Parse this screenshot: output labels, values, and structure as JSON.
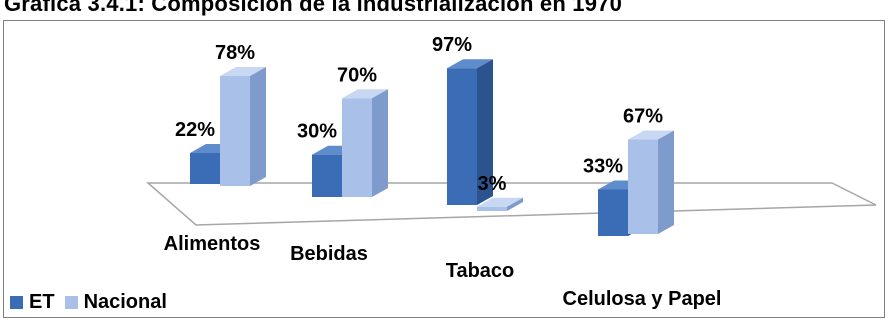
{
  "title": "Gráfica 3.4.1: Composición de la industrialización en 1970",
  "colors": {
    "et_front": "#3a6db5",
    "et_side": "#2b548f",
    "et_top": "#5f8ccb",
    "nacional_front": "#a9c0e8",
    "nacional_side": "#7f9bcc",
    "nacional_top": "#c8d8f3"
  },
  "chart_data": {
    "type": "bar",
    "title": "Gráfica 3.4.1: Composición de la industrialización en 1970",
    "categories": [
      "Alimentos",
      "Bebidas",
      "Tabaco",
      "Celulosa y Papel"
    ],
    "series": [
      {
        "name": "ET",
        "values": [
          22,
          30,
          97,
          33
        ],
        "labels": [
          "22%",
          "30%",
          "97%",
          "33%"
        ]
      },
      {
        "name": "Nacional",
        "values": [
          78,
          70,
          3,
          67
        ],
        "labels": [
          "78%",
          "70%",
          "3%",
          "67%"
        ]
      }
    ],
    "ylim": [
      0,
      100
    ],
    "legend": "bottom-left",
    "grid": false,
    "style": "3d-clustered-column"
  }
}
